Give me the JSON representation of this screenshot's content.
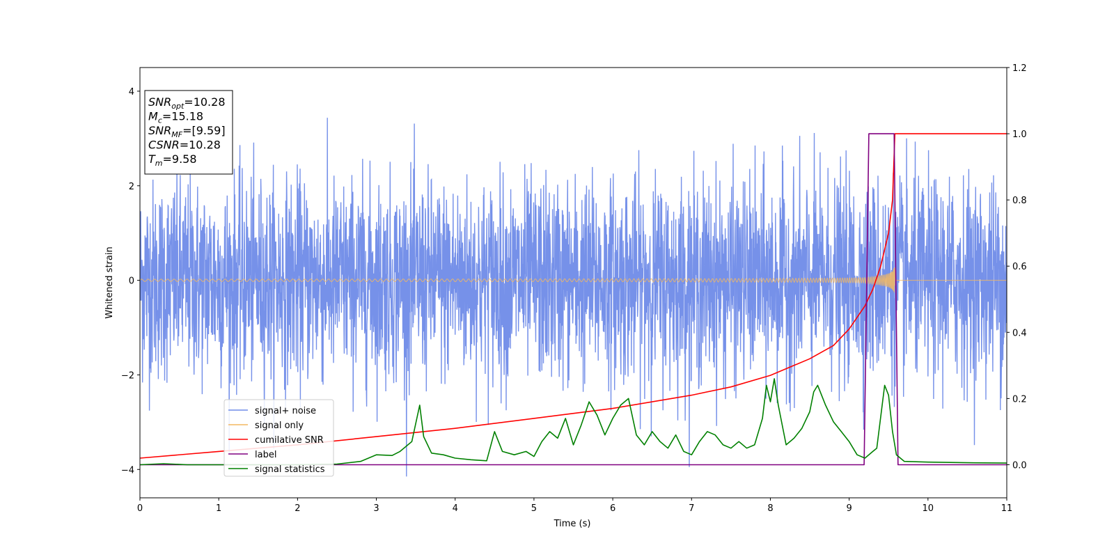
{
  "chart_data": {
    "type": "line",
    "xlabel": "Time (s)",
    "ylabel": "Whitened strain",
    "xlim": [
      0,
      11
    ],
    "ylim": [
      -4.6,
      4.5
    ],
    "y2lim": [
      -0.1,
      1.2
    ],
    "x_ticks": [
      "0",
      "1",
      "2",
      "3",
      "4",
      "5",
      "6",
      "7",
      "8",
      "9",
      "10",
      "11"
    ],
    "y_ticks": [
      "4",
      "2",
      "0",
      "−2",
      "−4"
    ],
    "y_tick_values": [
      4,
      2,
      0,
      -2,
      -4
    ],
    "y2_ticks": [
      "1.2",
      "1.0",
      "0.8",
      "0.6",
      "0.4",
      "0.2",
      "0.0"
    ],
    "y2_tick_values": [
      1.2,
      1.0,
      0.8,
      0.6,
      0.4,
      0.2,
      0.0
    ],
    "grid": false,
    "legend_position": "lower-left",
    "annotation": {
      "lines": [
        {
          "main": "SNR",
          "sub": "opt",
          "rest": "=10.28"
        },
        {
          "main": "M",
          "sub": "c",
          "rest": "=15.18"
        },
        {
          "main": "SNR",
          "sub": "MF",
          "rest": "=[9.59]"
        },
        {
          "main": "CSNR",
          "sub": "",
          "rest": "=10.28"
        },
        {
          "main": "T",
          "sub": "m",
          "rest": "=9.58"
        }
      ]
    },
    "series": [
      {
        "name": "signal+ noise",
        "color": "#6f8be8",
        "axis": "left",
        "kind": "noise",
        "envelope": [
          -2.8,
          2.8
        ]
      },
      {
        "name": "signal only",
        "color": "#f4b860",
        "axis": "left",
        "kind": "chirp",
        "merger_time": 9.58
      },
      {
        "name": "cumilative SNR",
        "color": "#ff0000",
        "axis": "right",
        "x": [
          0,
          1,
          2,
          3,
          4,
          5,
          6,
          7,
          7.5,
          8,
          8.5,
          8.8,
          9.0,
          9.2,
          9.3,
          9.4,
          9.5,
          9.55,
          9.58,
          9.6,
          11
        ],
        "y": [
          0.02,
          0.04,
          0.06,
          0.085,
          0.11,
          0.14,
          0.17,
          0.21,
          0.235,
          0.27,
          0.32,
          0.36,
          0.41,
          0.48,
          0.53,
          0.6,
          0.7,
          0.8,
          1.0,
          1.0,
          1.0
        ]
      },
      {
        "name": "label",
        "color": "#800080",
        "axis": "right",
        "x": [
          0,
          9.19,
          9.25,
          9.57,
          9.62,
          11
        ],
        "y": [
          0,
          0,
          1,
          1,
          0,
          0
        ]
      },
      {
        "name": "signal statistics",
        "color": "#008000",
        "axis": "right",
        "x": [
          0,
          0.3,
          0.6,
          1,
          1.5,
          2,
          2.5,
          2.8,
          3.0,
          3.2,
          3.3,
          3.45,
          3.55,
          3.6,
          3.7,
          3.85,
          4.0,
          4.2,
          4.4,
          4.5,
          4.6,
          4.75,
          4.9,
          5.0,
          5.1,
          5.2,
          5.3,
          5.4,
          5.5,
          5.6,
          5.7,
          5.8,
          5.9,
          6.0,
          6.1,
          6.2,
          6.3,
          6.4,
          6.5,
          6.6,
          6.7,
          6.8,
          6.9,
          7.0,
          7.1,
          7.2,
          7.3,
          7.4,
          7.5,
          7.6,
          7.7,
          7.8,
          7.9,
          7.95,
          8.0,
          8.05,
          8.1,
          8.2,
          8.3,
          8.4,
          8.5,
          8.55,
          8.6,
          8.7,
          8.8,
          8.9,
          9.0,
          9.1,
          9.2,
          9.3,
          9.35,
          9.45,
          9.5,
          9.55,
          9.6,
          9.7,
          10.0,
          10.5,
          11
        ],
        "y": [
          0.0,
          0.003,
          0.0,
          0.0,
          0.0,
          0.0,
          0.002,
          0.01,
          0.03,
          0.028,
          0.04,
          0.07,
          0.18,
          0.085,
          0.035,
          0.03,
          0.02,
          0.015,
          0.012,
          0.1,
          0.04,
          0.03,
          0.04,
          0.025,
          0.07,
          0.1,
          0.08,
          0.14,
          0.06,
          0.12,
          0.19,
          0.15,
          0.09,
          0.14,
          0.18,
          0.2,
          0.09,
          0.06,
          0.1,
          0.07,
          0.05,
          0.09,
          0.04,
          0.03,
          0.07,
          0.1,
          0.09,
          0.06,
          0.05,
          0.07,
          0.05,
          0.06,
          0.14,
          0.24,
          0.19,
          0.26,
          0.18,
          0.06,
          0.08,
          0.11,
          0.16,
          0.22,
          0.24,
          0.18,
          0.13,
          0.1,
          0.07,
          0.03,
          0.02,
          0.04,
          0.05,
          0.24,
          0.21,
          0.1,
          0.03,
          0.01,
          0.008,
          0.006,
          0.005
        ]
      }
    ]
  }
}
